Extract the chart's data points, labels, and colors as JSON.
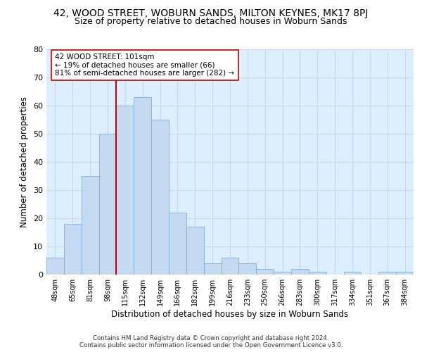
{
  "title_main": "42, WOOD STREET, WOBURN SANDS, MILTON KEYNES, MK17 8PJ",
  "title_sub": "Size of property relative to detached houses in Woburn Sands",
  "xlabel": "Distribution of detached houses by size in Woburn Sands",
  "ylabel": "Number of detached properties",
  "footer": "Contains HM Land Registry data © Crown copyright and database right 2024.\nContains public sector information licensed under the Open Government Licence v3.0.",
  "categories": [
    "48sqm",
    "65sqm",
    "81sqm",
    "98sqm",
    "115sqm",
    "132sqm",
    "149sqm",
    "166sqm",
    "182sqm",
    "199sqm",
    "216sqm",
    "233sqm",
    "250sqm",
    "266sqm",
    "283sqm",
    "300sqm",
    "317sqm",
    "334sqm",
    "351sqm",
    "367sqm",
    "384sqm"
  ],
  "values": [
    6,
    18,
    35,
    50,
    60,
    63,
    55,
    22,
    17,
    4,
    6,
    4,
    2,
    1,
    2,
    1,
    0,
    1,
    0,
    1,
    1
  ],
  "bar_color": "#c5d9f0",
  "bar_edge_color": "#7ab0d8",
  "vline_x": 3.5,
  "vline_color": "#cc0000",
  "annotation_text": "42 WOOD STREET: 101sqm\n← 19% of detached houses are smaller (66)\n81% of semi-detached houses are larger (282) →",
  "annotation_box_color": "#ffffff",
  "annotation_box_edge": "#cc0000",
  "ylim": [
    0,
    80
  ],
  "yticks": [
    0,
    10,
    20,
    30,
    40,
    50,
    60,
    70,
    80
  ],
  "grid_color": "#c8d8e8",
  "bg_color": "#ddeeff",
  "title_fontsize": 10,
  "subtitle_fontsize": 9,
  "axis_label_fontsize": 8.5,
  "annot_fontsize": 7.5
}
